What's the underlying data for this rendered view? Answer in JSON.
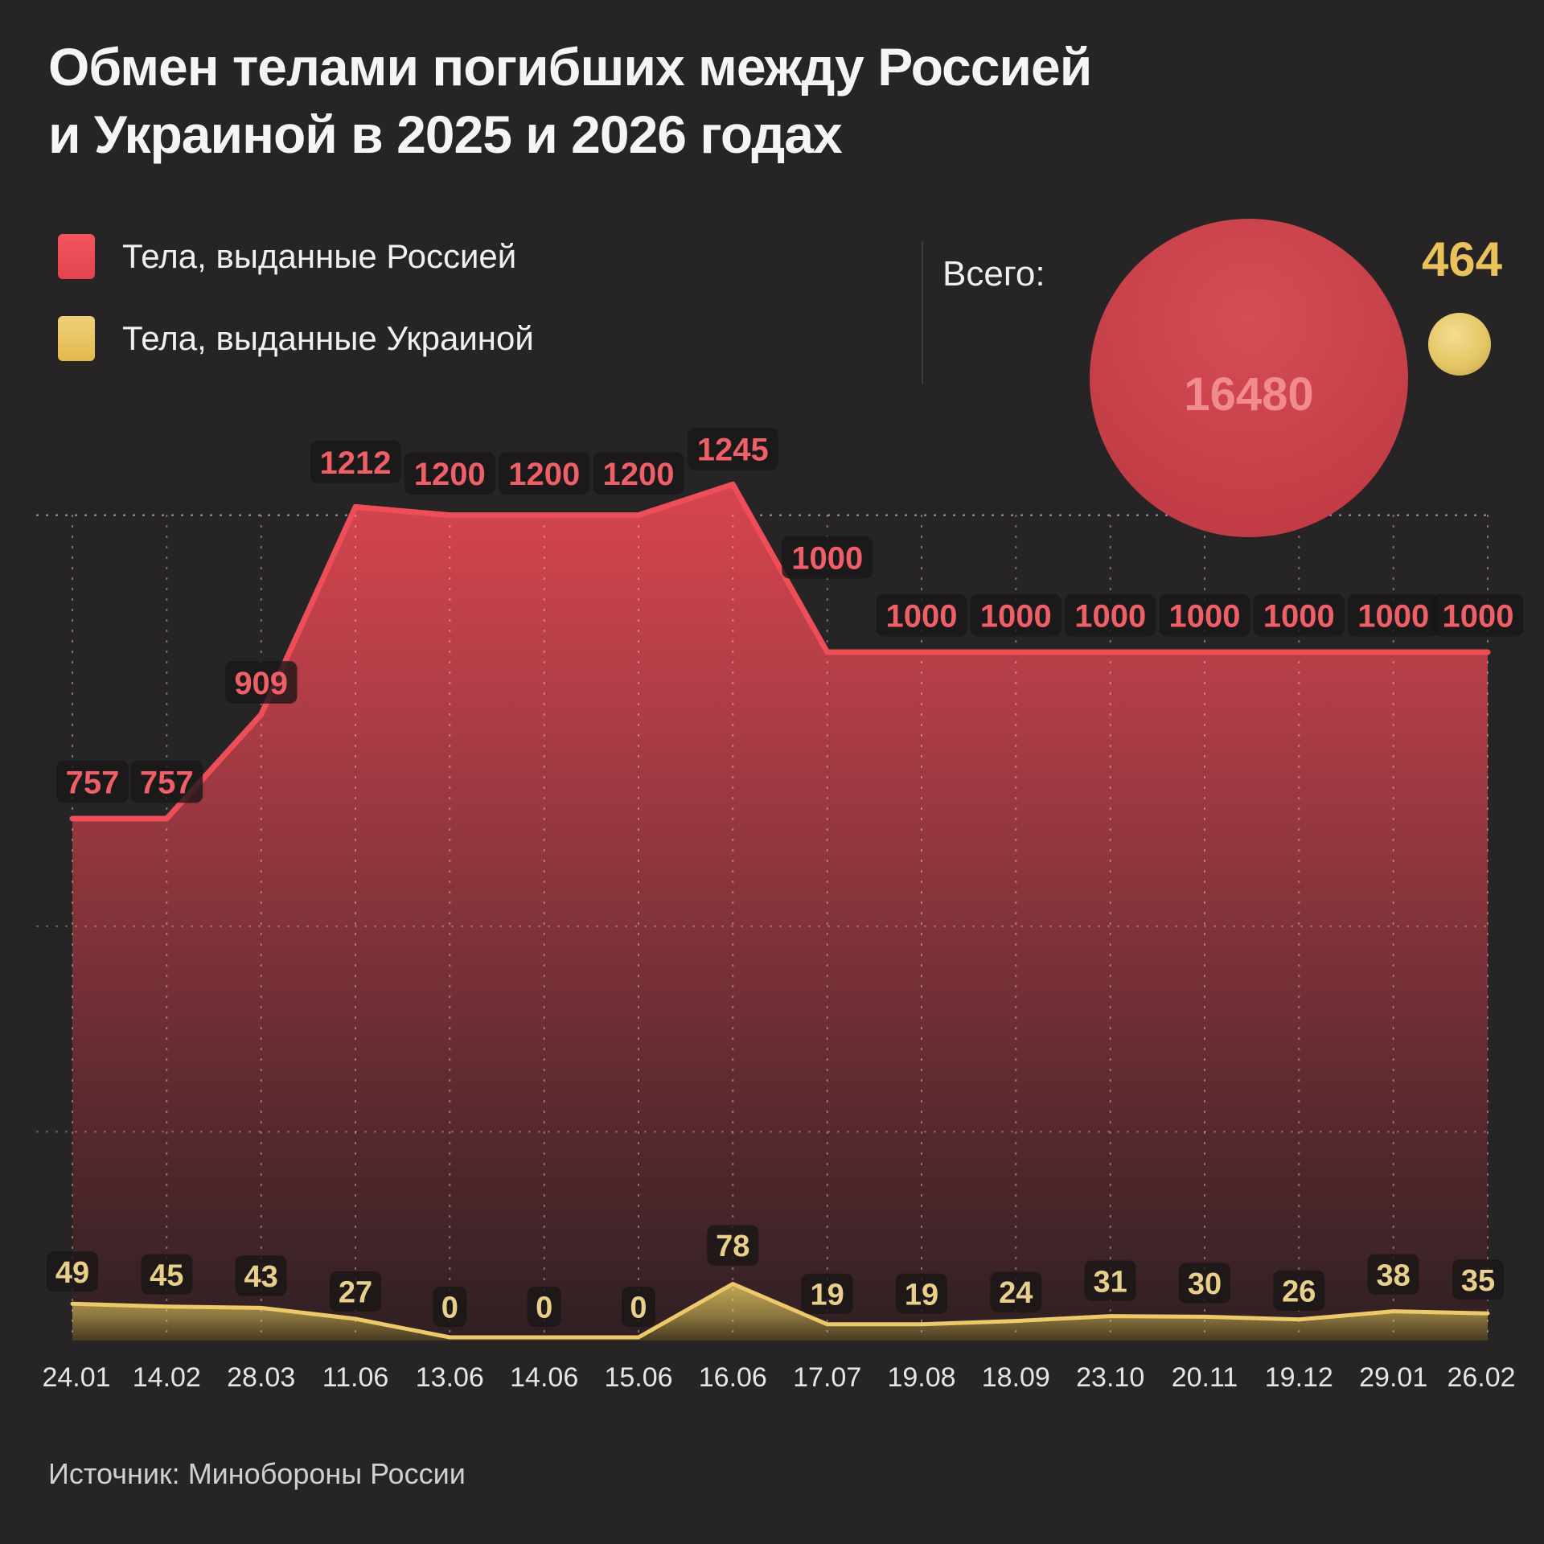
{
  "title": {
    "line1": "Обмен телами погибших между Россией",
    "line2": "и Украиной в 2025 и 2026 годах"
  },
  "legend": {
    "russia": "Тела, выданные Россией",
    "ukraine": "Тела, выданные Украиной"
  },
  "totals": {
    "label": "Всего:",
    "russia_total": "16480",
    "ukraine_total": "464"
  },
  "source": "Источник: Минобороны России",
  "colors": {
    "russia_line": "#ee4e58",
    "ukraine_line": "#ecca6a",
    "russia_label": "#ee5f68",
    "ukraine_label": "#e9d08a",
    "date_label": "#e8e6e4"
  },
  "chart_data": {
    "type": "area",
    "title": "Обмен телами погибших между Россией и Украиной в 2025 и 2026 годах",
    "categories": [
      "24.01",
      "14.02",
      "28.03",
      "11.06",
      "13.06",
      "14.06",
      "15.06",
      "16.06",
      "17.07",
      "19.08",
      "18.09",
      "23.10",
      "20.11",
      "19.12",
      "29.01",
      "26.02"
    ],
    "series": [
      {
        "name": "Тела, выданные Россией",
        "color": "#ee4e58",
        "total": 16480,
        "values": [
          757,
          757,
          909,
          1212,
          1200,
          1200,
          1200,
          1245,
          1000,
          1000,
          1000,
          1000,
          1000,
          1000,
          1000,
          1000
        ]
      },
      {
        "name": "Тела, выданные Украиной",
        "color": "#ecca6a",
        "total": 464,
        "values": [
          49,
          45,
          43,
          27,
          0,
          0,
          0,
          78,
          19,
          19,
          24,
          31,
          30,
          26,
          38,
          35
        ]
      }
    ],
    "xlabel": "",
    "ylabel": "",
    "ylim": [
      0,
      1300
    ],
    "grid": "dashed vertical at each point, dashed horizontals",
    "legend_position": "top-left",
    "data_labels": "all points, dark rounded badges"
  }
}
